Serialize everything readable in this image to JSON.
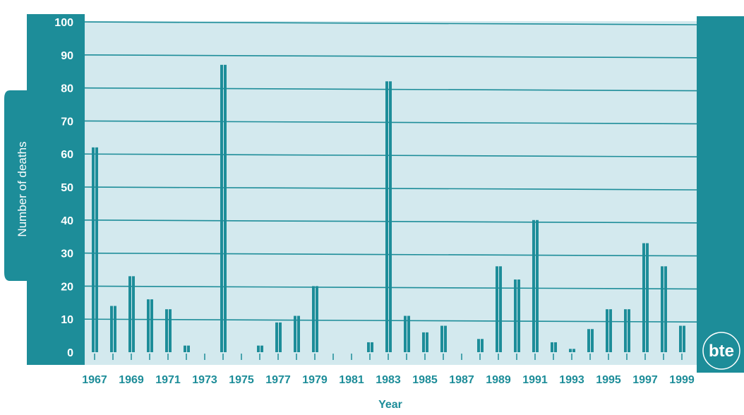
{
  "colors": {
    "accent": "#1d8d99",
    "plot_bg": "#d3e9ee",
    "grid": "#1d8d99",
    "white": "#ffffff"
  },
  "logo": {
    "text": "bte"
  },
  "chart_data": {
    "type": "bar",
    "xlabel": "Year",
    "ylabel": "Number of deaths",
    "ylim": [
      0,
      100
    ],
    "yticks": [
      0,
      10,
      20,
      30,
      40,
      50,
      60,
      70,
      80,
      90,
      100
    ],
    "grid": true,
    "categories": [
      "1967",
      "1968",
      "1969",
      "1970",
      "1971",
      "1972",
      "1973",
      "1974",
      "1975",
      "1976",
      "1977",
      "1978",
      "1979",
      "1980",
      "1981",
      "1982",
      "1983",
      "1984",
      "1985",
      "1986",
      "1987",
      "1988",
      "1989",
      "1990",
      "1991",
      "1992",
      "1993",
      "1994",
      "1995",
      "1996",
      "1997",
      "1998",
      "1999"
    ],
    "tick_labels": [
      "1967",
      "1969",
      "1971",
      "1973",
      "1975",
      "1977",
      "1979",
      "1981",
      "1983",
      "1985",
      "1987",
      "1989",
      "1991",
      "1993",
      "1995",
      "1997",
      "1999"
    ],
    "values": [
      62,
      14,
      23,
      16,
      13,
      2,
      0,
      87,
      0,
      2,
      9,
      11,
      20,
      0,
      0,
      3,
      82,
      11,
      6,
      8,
      0,
      4,
      26,
      22,
      40,
      3,
      1,
      7,
      13,
      13,
      33,
      26,
      8
    ]
  }
}
